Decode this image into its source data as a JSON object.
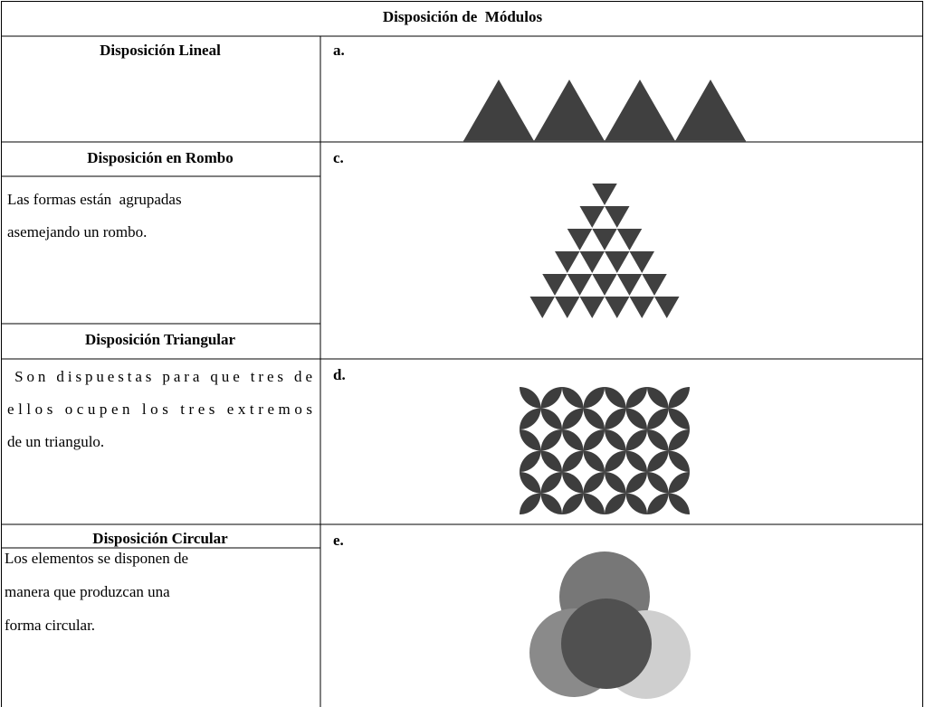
{
  "header": {
    "title": "Disposición de  Módulos"
  },
  "rows": [
    {
      "heading": "Disposición Lineal",
      "label": "a."
    },
    {
      "heading": "Disposición en Rombo",
      "text": [
        "Las formas están  agrupadas",
        "asemejando un rombo."
      ],
      "subheading": "Disposición Triangular",
      "label": "c."
    },
    {
      "text": [
        " Son dispuestas para que tres de",
        "ellos ocupen los tres extremos",
        "de un triangulo."
      ],
      "label": "d."
    },
    {
      "heading": "Disposición Circular",
      "text": [
        "Los elementos se disponen de",
        "manera que produzcan una",
        "forma circular."
      ],
      "label": "e."
    }
  ]
}
